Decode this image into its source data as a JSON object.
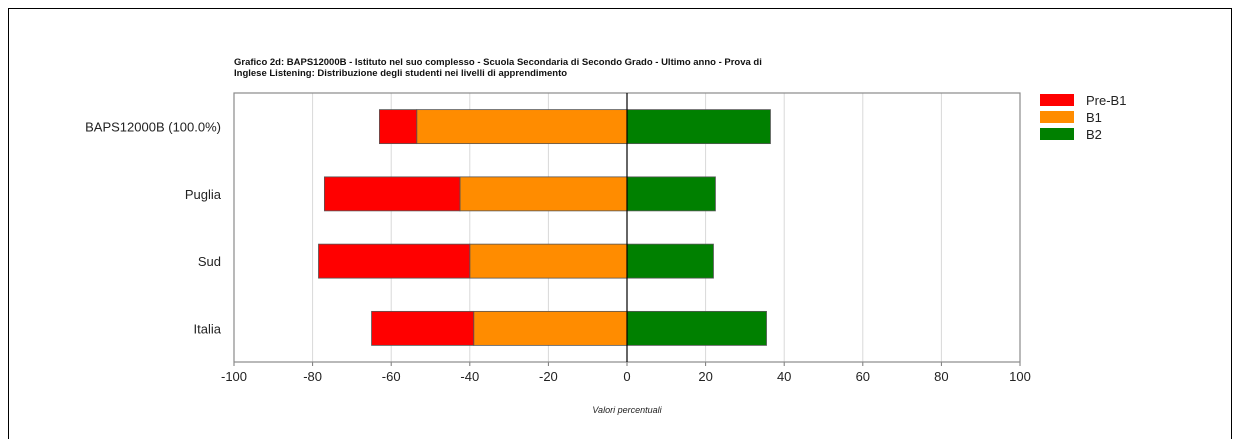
{
  "chart_data": {
    "type": "bar",
    "orientation": "horizontal-diverging",
    "title_lines": [
      "Grafico 2d: BAPS12000B - Istituto nel suo complesso - Scuola Secondaria di Secondo Grado - Ultimo anno - Prova di",
      "Inglese Listening: Distribuzione degli studenti nei livelli di apprendimento"
    ],
    "xlabel": "Valori percentuali",
    "ylabel": "",
    "xlim": [
      -100,
      100
    ],
    "xticks": [
      "-100",
      "-80",
      "-60",
      "-40",
      "-20",
      "0",
      "20",
      "40",
      "60",
      "80",
      "100"
    ],
    "grid": "vertical",
    "legend_position": "right",
    "categories": [
      "BAPS12000B (100.0%)",
      "Puglia",
      "Sud",
      "Italia"
    ],
    "series": [
      {
        "name": "Pre-B1",
        "color": "#ff0000",
        "side": "negative",
        "values": [
          9.5,
          34.5,
          38.5,
          26
        ]
      },
      {
        "name": "B1",
        "color": "#ff8c00",
        "side": "negative",
        "values": [
          53.5,
          42.5,
          40,
          39
        ]
      },
      {
        "name": "B2",
        "color": "#008000",
        "side": "positive",
        "values": [
          36.5,
          22.5,
          22,
          35.5
        ]
      }
    ]
  }
}
